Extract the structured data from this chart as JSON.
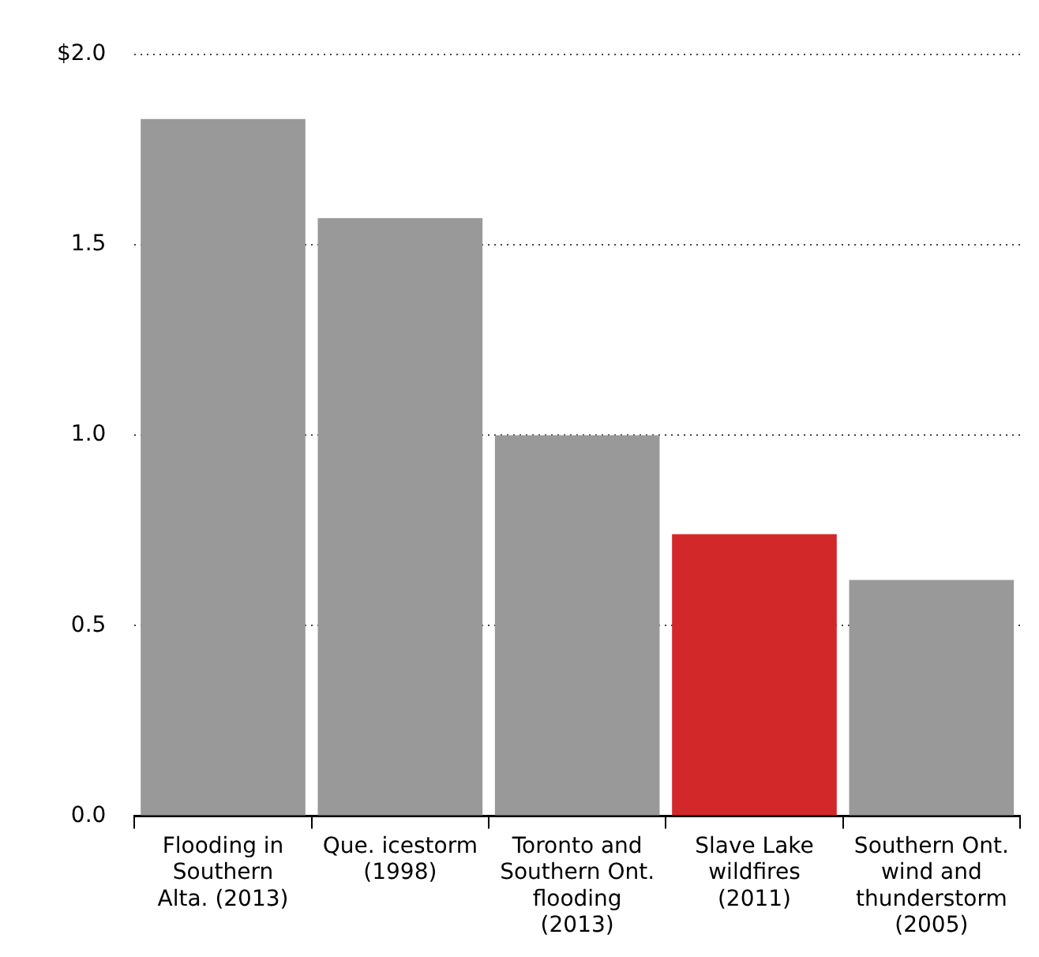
{
  "chart_data": {
    "type": "bar",
    "categories": [
      "Flooding in Southern Alta. (2013)",
      "Que. icestorm (1998)",
      "Toronto and Southern Ont. flooding (2013)",
      "Slave Lake wildfires (2011)",
      "Southern Ont. wind and thunderstorm (2005)"
    ],
    "values": [
      1.83,
      1.57,
      1.0,
      0.74,
      0.62
    ],
    "colors": [
      "#999999",
      "#999999",
      "#999999",
      "#d2282a",
      "#999999"
    ],
    "ylim": [
      0,
      2
    ],
    "yticks": [
      {
        "value": 0,
        "label": "0.0"
      },
      0.5,
      {
        "value": 1,
        "label": "1.0"
      },
      1.5,
      {
        "value": 2,
        "label": "$2.0"
      }
    ],
    "grid": "y",
    "legend": false
  }
}
